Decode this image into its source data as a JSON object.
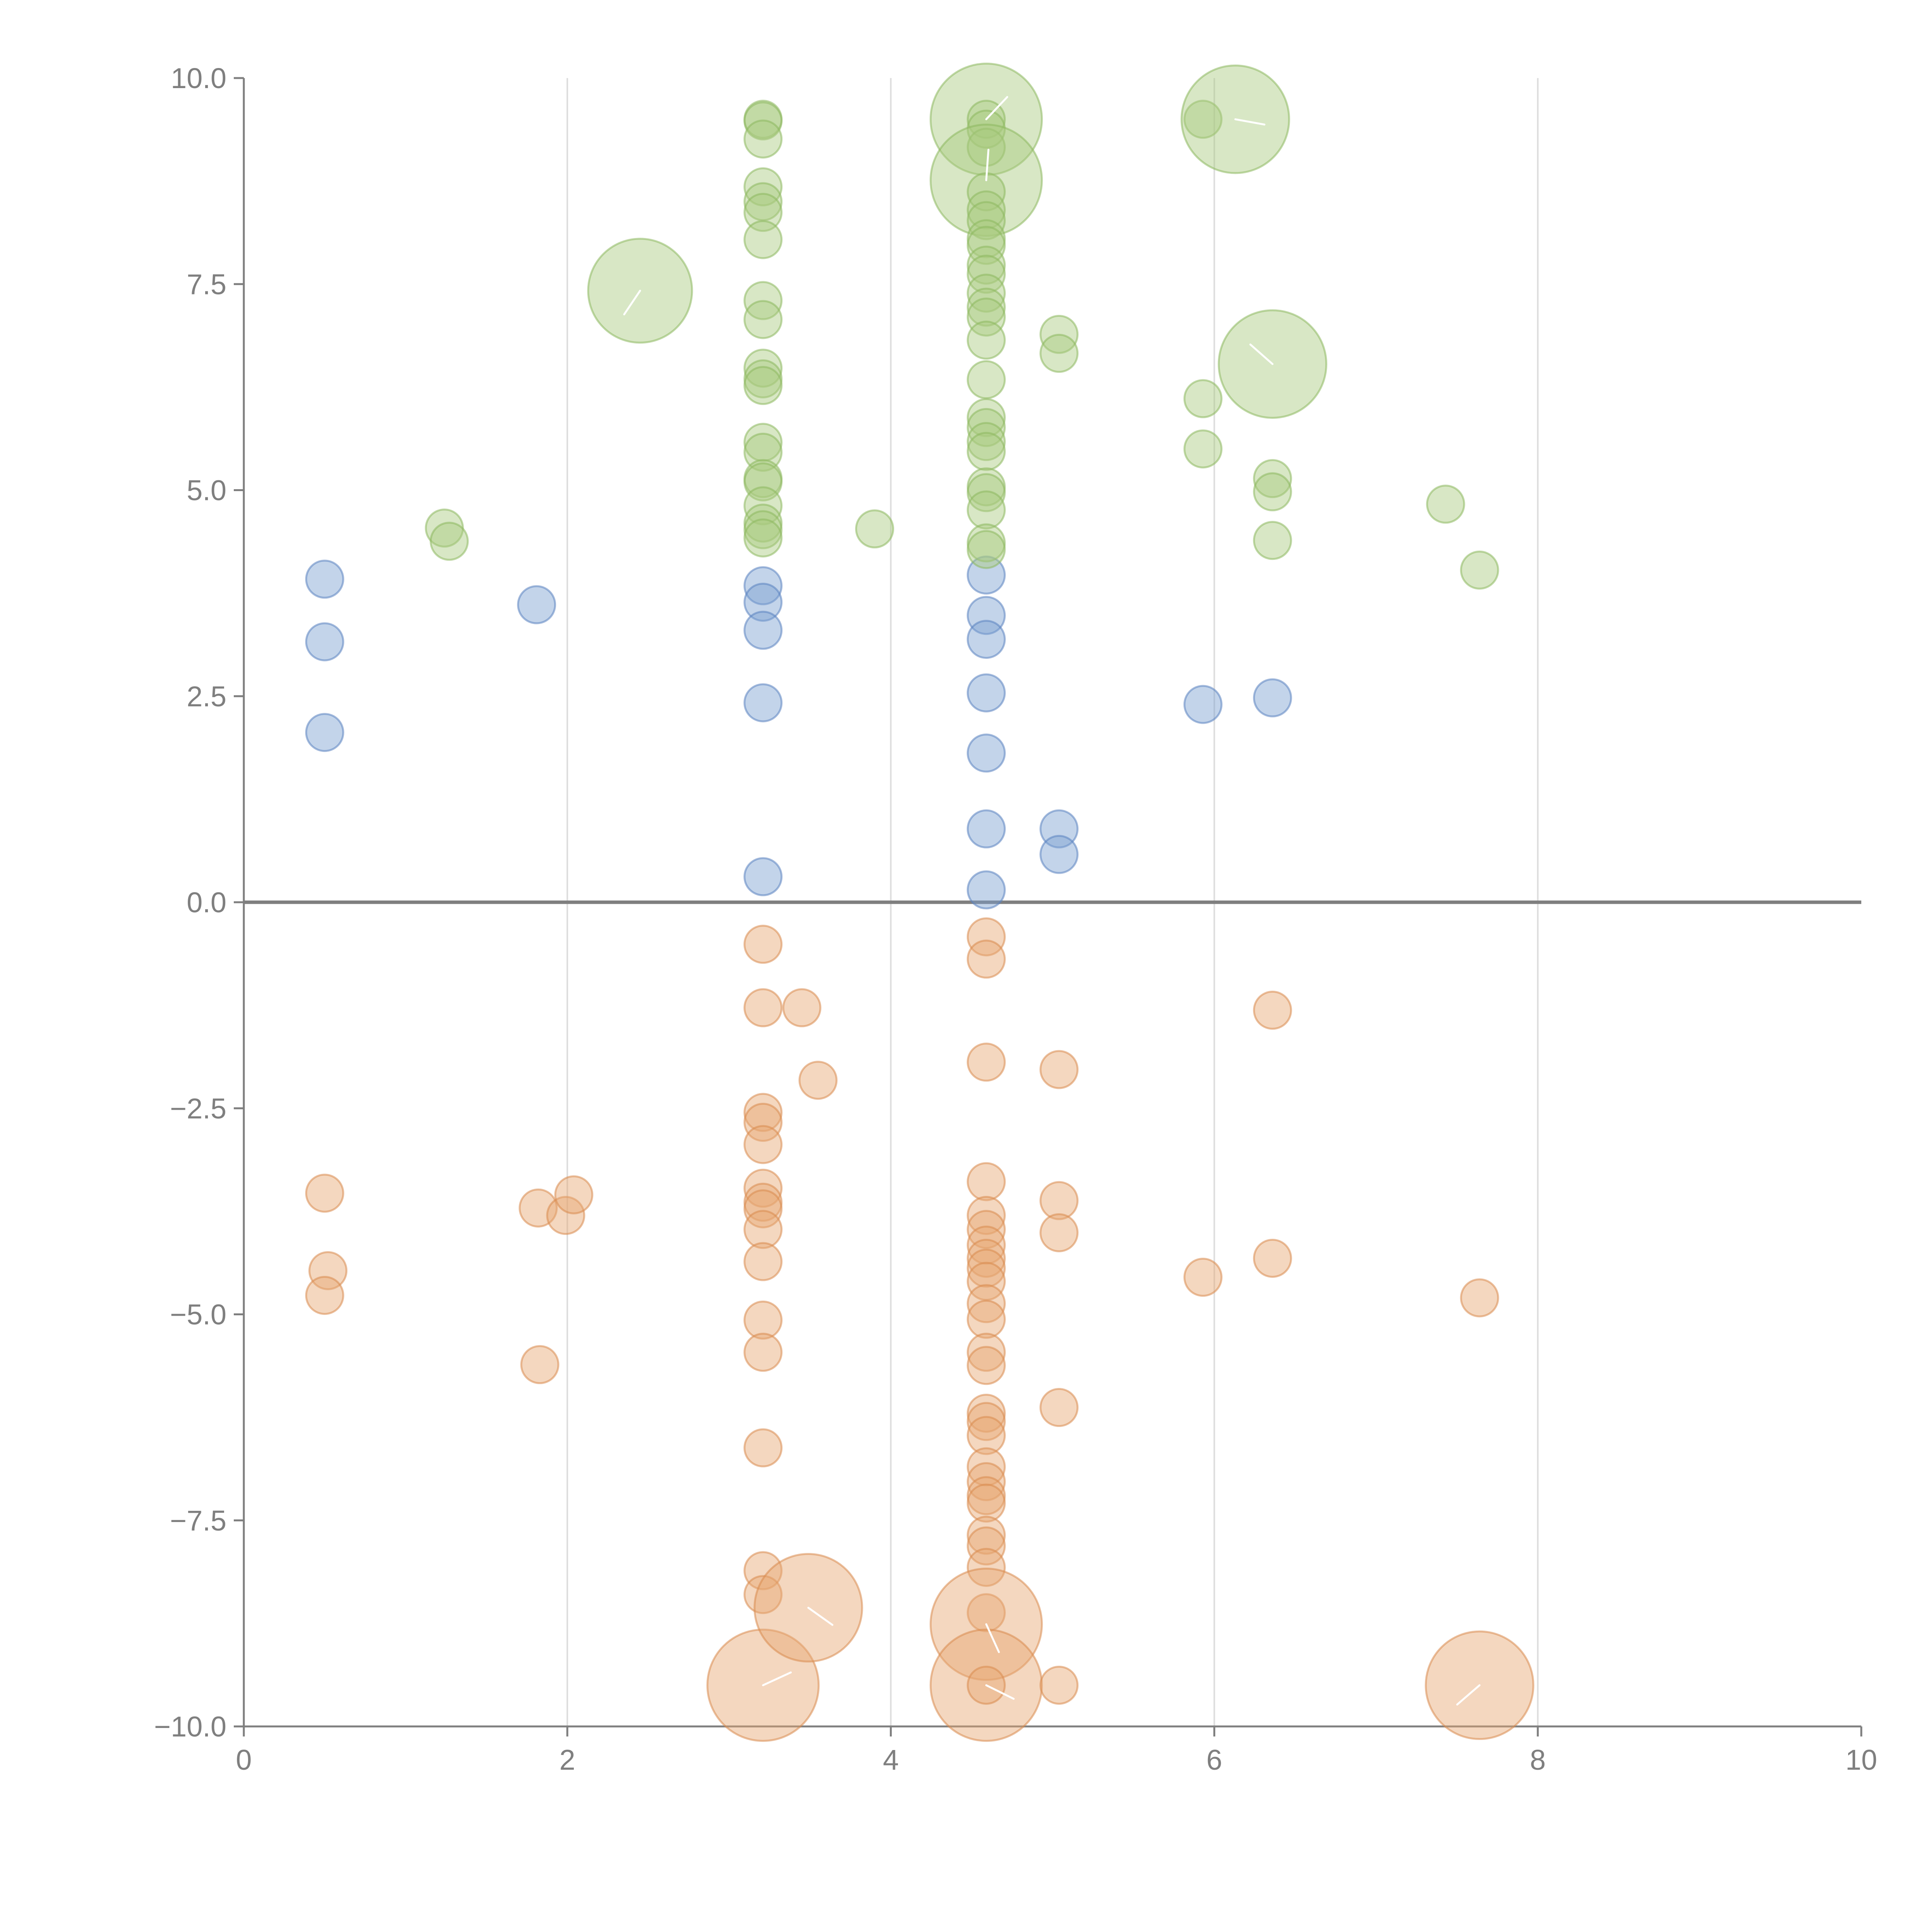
{
  "chart_data": {
    "type": "scatter",
    "title": "",
    "xlabel": "",
    "ylabel": "",
    "xlim": [
      0,
      10
    ],
    "ylim": [
      -10,
      10
    ],
    "x_ticks": [
      0,
      2,
      4,
      6,
      8,
      10
    ],
    "y_ticks": [
      10,
      7.5,
      5,
      2.5,
      0,
      -2.5,
      -5,
      -7.5,
      -10
    ],
    "x_tick_labels": [
      "0",
      "2",
      "4",
      "6",
      "8",
      "10"
    ],
    "y_tick_labels": [
      "10.0",
      "7.5",
      "5.0",
      "2.5",
      "0.0",
      "−2.5",
      "−5.0",
      "−7.5",
      "−10.0"
    ],
    "x_grid": true,
    "y_grid": false,
    "reference_line": {
      "y": 0
    },
    "legend": "none",
    "series": [
      {
        "name": "blue",
        "color": "#7b9fd0",
        "stroke": "#5a82c0",
        "points": [
          {
            "x": 0.5,
            "y": 3.92,
            "r": 1
          },
          {
            "x": 0.5,
            "y": 3.16,
            "r": 1
          },
          {
            "x": 0.5,
            "y": 2.06,
            "r": 1
          },
          {
            "x": 1.81,
            "y": 3.61,
            "r": 1
          },
          {
            "x": 3.21,
            "y": 3.84,
            "r": 1
          },
          {
            "x": 3.21,
            "y": 3.64,
            "r": 1
          },
          {
            "x": 3.21,
            "y": 3.3,
            "r": 1
          },
          {
            "x": 3.21,
            "y": 2.42,
            "r": 1
          },
          {
            "x": 3.21,
            "y": 0.31,
            "r": 1
          },
          {
            "x": 4.59,
            "y": 3.97,
            "r": 1
          },
          {
            "x": 4.59,
            "y": 3.48,
            "r": 1
          },
          {
            "x": 4.59,
            "y": 3.19,
            "r": 1
          },
          {
            "x": 4.59,
            "y": 2.54,
            "r": 1
          },
          {
            "x": 4.59,
            "y": 1.81,
            "r": 1
          },
          {
            "x": 4.59,
            "y": 0.89,
            "r": 1
          },
          {
            "x": 4.59,
            "y": 0.15,
            "r": 1
          },
          {
            "x": 5.04,
            "y": 0.89,
            "r": 1
          },
          {
            "x": 5.04,
            "y": 0.58,
            "r": 1
          },
          {
            "x": 5.93,
            "y": 2.4,
            "r": 1
          },
          {
            "x": 6.36,
            "y": 2.48,
            "r": 1
          }
        ]
      },
      {
        "name": "green",
        "color": "#a8c97f",
        "stroke": "#8db85f",
        "points": [
          {
            "x": 1.24,
            "y": 4.54,
            "r": 1
          },
          {
            "x": 1.27,
            "y": 4.38,
            "r": 1
          },
          {
            "x": 2.45,
            "y": 7.42,
            "r": 2.8
          },
          {
            "x": 3.21,
            "y": 9.5,
            "r": 1
          },
          {
            "x": 3.21,
            "y": 9.48,
            "r": 1
          },
          {
            "x": 3.21,
            "y": 9.26,
            "r": 1
          },
          {
            "x": 3.21,
            "y": 8.68,
            "r": 1
          },
          {
            "x": 3.21,
            "y": 8.5,
            "r": 1
          },
          {
            "x": 3.21,
            "y": 8.37,
            "r": 1
          },
          {
            "x": 3.21,
            "y": 8.04,
            "r": 1
          },
          {
            "x": 3.21,
            "y": 7.3,
            "r": 1
          },
          {
            "x": 3.21,
            "y": 7.07,
            "r": 1
          },
          {
            "x": 3.21,
            "y": 6.48,
            "r": 1
          },
          {
            "x": 3.21,
            "y": 6.35,
            "r": 1
          },
          {
            "x": 3.21,
            "y": 6.27,
            "r": 1
          },
          {
            "x": 3.21,
            "y": 5.58,
            "r": 1
          },
          {
            "x": 3.21,
            "y": 5.46,
            "r": 1
          },
          {
            "x": 3.21,
            "y": 5.14,
            "r": 1
          },
          {
            "x": 3.21,
            "y": 5.1,
            "r": 1
          },
          {
            "x": 3.21,
            "y": 4.81,
            "r": 1
          },
          {
            "x": 3.21,
            "y": 4.6,
            "r": 1
          },
          {
            "x": 3.21,
            "y": 4.52,
            "r": 1
          },
          {
            "x": 3.21,
            "y": 4.42,
            "r": 1
          },
          {
            "x": 3.9,
            "y": 4.53,
            "r": 1
          },
          {
            "x": 4.59,
            "y": 9.5,
            "r": 3.0
          },
          {
            "x": 4.59,
            "y": 9.5,
            "r": 1
          },
          {
            "x": 4.59,
            "y": 9.38,
            "r": 1
          },
          {
            "x": 4.59,
            "y": 9.16,
            "r": 1
          },
          {
            "x": 4.59,
            "y": 8.76,
            "r": 3.0
          },
          {
            "x": 4.59,
            "y": 8.62,
            "r": 1
          },
          {
            "x": 4.59,
            "y": 8.4,
            "r": 1
          },
          {
            "x": 4.59,
            "y": 8.27,
            "r": 1
          },
          {
            "x": 4.59,
            "y": 8.05,
            "r": 1
          },
          {
            "x": 4.59,
            "y": 7.97,
            "r": 1
          },
          {
            "x": 4.59,
            "y": 7.73,
            "r": 1
          },
          {
            "x": 4.59,
            "y": 7.62,
            "r": 1
          },
          {
            "x": 4.59,
            "y": 7.39,
            "r": 1
          },
          {
            "x": 4.59,
            "y": 7.22,
            "r": 1
          },
          {
            "x": 4.59,
            "y": 7.1,
            "r": 1
          },
          {
            "x": 4.59,
            "y": 6.82,
            "r": 1
          },
          {
            "x": 4.59,
            "y": 6.34,
            "r": 1
          },
          {
            "x": 4.59,
            "y": 5.88,
            "r": 1
          },
          {
            "x": 4.59,
            "y": 5.76,
            "r": 1
          },
          {
            "x": 4.59,
            "y": 5.59,
            "r": 1
          },
          {
            "x": 4.59,
            "y": 5.47,
            "r": 1
          },
          {
            "x": 4.59,
            "y": 5.04,
            "r": 1
          },
          {
            "x": 4.59,
            "y": 4.97,
            "r": 1
          },
          {
            "x": 4.59,
            "y": 4.76,
            "r": 1
          },
          {
            "x": 4.59,
            "y": 4.36,
            "r": 1
          },
          {
            "x": 4.59,
            "y": 4.28,
            "r": 1
          },
          {
            "x": 5.04,
            "y": 6.89,
            "r": 1
          },
          {
            "x": 5.04,
            "y": 6.66,
            "r": 1
          },
          {
            "x": 5.93,
            "y": 9.5,
            "r": 1
          },
          {
            "x": 5.93,
            "y": 6.11,
            "r": 1
          },
          {
            "x": 5.93,
            "y": 5.5,
            "r": 1
          },
          {
            "x": 6.13,
            "y": 9.5,
            "r": 2.9
          },
          {
            "x": 6.36,
            "y": 6.53,
            "r": 2.9
          },
          {
            "x": 6.36,
            "y": 5.14,
            "r": 1
          },
          {
            "x": 6.36,
            "y": 4.98,
            "r": 1
          },
          {
            "x": 6.36,
            "y": 4.39,
            "r": 1
          },
          {
            "x": 7.43,
            "y": 4.83,
            "r": 1
          },
          {
            "x": 7.64,
            "y": 4.03,
            "r": 1
          }
        ]
      },
      {
        "name": "orange",
        "color": "#e7a671",
        "stroke": "#d98b4f",
        "points": [
          {
            "x": 0.5,
            "y": -3.53,
            "r": 1
          },
          {
            "x": 0.52,
            "y": -4.47,
            "r": 1
          },
          {
            "x": 0.5,
            "y": -4.77,
            "r": 1
          },
          {
            "x": 1.82,
            "y": -3.71,
            "r": 1
          },
          {
            "x": 1.83,
            "y": -5.61,
            "r": 1
          },
          {
            "x": 1.99,
            "y": -3.8,
            "r": 1
          },
          {
            "x": 2.04,
            "y": -3.55,
            "r": 1
          },
          {
            "x": 3.21,
            "y": -0.51,
            "r": 1
          },
          {
            "x": 3.21,
            "y": -1.28,
            "r": 1
          },
          {
            "x": 3.21,
            "y": -2.55,
            "r": 1
          },
          {
            "x": 3.21,
            "y": -2.67,
            "r": 1
          },
          {
            "x": 3.21,
            "y": -2.94,
            "r": 1
          },
          {
            "x": 3.21,
            "y": -3.47,
            "r": 1
          },
          {
            "x": 3.21,
            "y": -3.64,
            "r": 1
          },
          {
            "x": 3.21,
            "y": -3.72,
            "r": 1
          },
          {
            "x": 3.21,
            "y": -3.97,
            "r": 1
          },
          {
            "x": 3.21,
            "y": -4.36,
            "r": 1
          },
          {
            "x": 3.21,
            "y": -5.07,
            "r": 1
          },
          {
            "x": 3.21,
            "y": -5.46,
            "r": 1
          },
          {
            "x": 3.21,
            "y": -6.62,
            "r": 1
          },
          {
            "x": 3.21,
            "y": -8.11,
            "r": 1
          },
          {
            "x": 3.21,
            "y": -8.4,
            "r": 1
          },
          {
            "x": 3.21,
            "y": -9.5,
            "r": 3.0
          },
          {
            "x": 3.45,
            "y": -1.28,
            "r": 1
          },
          {
            "x": 3.49,
            "y": -8.56,
            "r": 2.9
          },
          {
            "x": 3.55,
            "y": -2.16,
            "r": 1
          },
          {
            "x": 4.59,
            "y": -0.42,
            "r": 1
          },
          {
            "x": 4.59,
            "y": -0.69,
            "r": 1
          },
          {
            "x": 4.59,
            "y": -1.94,
            "r": 1
          },
          {
            "x": 4.59,
            "y": -3.39,
            "r": 1
          },
          {
            "x": 4.59,
            "y": -3.8,
            "r": 1
          },
          {
            "x": 4.59,
            "y": -3.97,
            "r": 1
          },
          {
            "x": 4.59,
            "y": -4.16,
            "r": 1
          },
          {
            "x": 4.59,
            "y": -4.32,
            "r": 1
          },
          {
            "x": 4.59,
            "y": -4.44,
            "r": 1
          },
          {
            "x": 4.59,
            "y": -4.6,
            "r": 1
          },
          {
            "x": 4.59,
            "y": -4.87,
            "r": 1
          },
          {
            "x": 4.59,
            "y": -5.06,
            "r": 1
          },
          {
            "x": 4.59,
            "y": -5.46,
            "r": 1
          },
          {
            "x": 4.59,
            "y": -5.62,
            "r": 1
          },
          {
            "x": 4.59,
            "y": -6.2,
            "r": 1
          },
          {
            "x": 4.59,
            "y": -6.3,
            "r": 1
          },
          {
            "x": 4.59,
            "y": -6.47,
            "r": 1
          },
          {
            "x": 4.59,
            "y": -6.85,
            "r": 1
          },
          {
            "x": 4.59,
            "y": -7.03,
            "r": 1
          },
          {
            "x": 4.59,
            "y": -7.2,
            "r": 1
          },
          {
            "x": 4.59,
            "y": -7.29,
            "r": 1
          },
          {
            "x": 4.59,
            "y": -7.68,
            "r": 1
          },
          {
            "x": 4.59,
            "y": -7.81,
            "r": 1
          },
          {
            "x": 4.59,
            "y": -8.07,
            "r": 1
          },
          {
            "x": 4.59,
            "y": -8.62,
            "r": 1
          },
          {
            "x": 4.59,
            "y": -8.76,
            "r": 3.0
          },
          {
            "x": 4.59,
            "y": -9.5,
            "r": 3.0
          },
          {
            "x": 4.59,
            "y": -9.5,
            "r": 1
          },
          {
            "x": 5.04,
            "y": -2.03,
            "r": 1
          },
          {
            "x": 5.04,
            "y": -3.62,
            "r": 1
          },
          {
            "x": 5.04,
            "y": -4.01,
            "r": 1
          },
          {
            "x": 5.04,
            "y": -6.13,
            "r": 1
          },
          {
            "x": 5.04,
            "y": -9.5,
            "r": 1
          },
          {
            "x": 5.93,
            "y": -4.55,
            "r": 1
          },
          {
            "x": 6.36,
            "y": -1.31,
            "r": 1
          },
          {
            "x": 6.36,
            "y": -4.32,
            "r": 1
          },
          {
            "x": 7.64,
            "y": -4.8,
            "r": 1
          },
          {
            "x": 7.64,
            "y": -9.5,
            "r": 2.9
          }
        ]
      }
    ]
  }
}
